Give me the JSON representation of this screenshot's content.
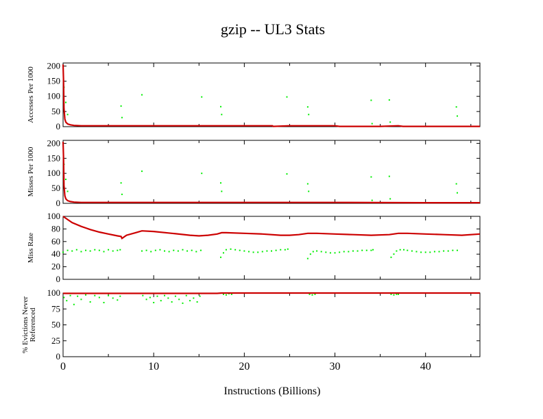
{
  "chart_data": {
    "type": "scatter",
    "title": "gzip -- UL3  Stats",
    "xlabel": "Instructions (Billions)",
    "xlim": [
      0,
      46
    ],
    "x_ticks": [
      0,
      10,
      20,
      30,
      40
    ],
    "x_tick_labels": [
      "0",
      "10",
      "20",
      "30",
      "40"
    ],
    "grid": false,
    "colors": {
      "line": "#cc0000",
      "points": "#00ee00",
      "frame": "#000000"
    },
    "panels": [
      {
        "ylabel": "Accesses Per 1000",
        "ylim": [
          0,
          210
        ],
        "y_ticks": [
          0,
          50,
          100,
          150,
          200
        ],
        "y_tick_labels": [
          "0",
          "50",
          "100",
          "150",
          "200"
        ],
        "line": {
          "x": [
            0,
            0.05,
            0.1,
            0.2,
            0.3,
            0.5,
            0.8,
            1.2,
            2,
            5,
            10,
            15,
            20,
            23.1,
            23.2,
            25,
            30,
            30.5,
            31,
            35,
            37,
            37.5,
            40,
            46
          ],
          "y": [
            205,
            150,
            60,
            25,
            15,
            9,
            6,
            4,
            3,
            3,
            3,
            3,
            3,
            3,
            1,
            3,
            3,
            1,
            1,
            1,
            3,
            1,
            1,
            1
          ]
        },
        "points": {
          "x": [
            0.1,
            0.3,
            0.5,
            6.4,
            6.5,
            8.7,
            15.3,
            17.4,
            17.5,
            24.7,
            27.0,
            27.1,
            34.0,
            34.1,
            36.0,
            36.1,
            43.4,
            43.5
          ],
          "y": [
            130,
            80,
            40,
            68,
            30,
            105,
            98,
            66,
            40,
            98,
            65,
            40,
            87,
            10,
            88,
            15,
            65,
            35
          ]
        }
      },
      {
        "ylabel": "Misses Per 1000",
        "ylim": [
          0,
          210
        ],
        "y_ticks": [
          0,
          50,
          100,
          150,
          200
        ],
        "y_tick_labels": [
          "0",
          "50",
          "100",
          "150",
          "200"
        ],
        "line": {
          "x": [
            0,
            0.05,
            0.1,
            0.2,
            0.3,
            0.5,
            0.8,
            1.2,
            2,
            5,
            10,
            20,
            30,
            40,
            46
          ],
          "y": [
            205,
            150,
            60,
            25,
            15,
            9,
            6,
            4,
            3,
            3,
            3,
            3,
            3,
            2,
            2
          ]
        },
        "points": {
          "x": [
            0.1,
            0.3,
            0.5,
            6.4,
            6.5,
            8.7,
            15.3,
            17.4,
            17.5,
            24.7,
            27.0,
            27.1,
            34.0,
            34.1,
            36.0,
            36.1,
            43.4,
            43.5
          ],
          "y": [
            130,
            80,
            40,
            68,
            30,
            107,
            100,
            68,
            40,
            98,
            65,
            40,
            88,
            10,
            90,
            15,
            65,
            35
          ]
        }
      },
      {
        "ylabel": "Miss Rate",
        "ylim": [
          0,
          100
        ],
        "y_ticks": [
          0,
          20,
          40,
          60,
          80,
          100
        ],
        "y_tick_labels": [
          "0",
          "20",
          "40",
          "60",
          "80",
          "100"
        ],
        "line": {
          "x": [
            0,
            0.5,
            1,
            2,
            3,
            4,
            5,
            6,
            6.4,
            6.5,
            7,
            8,
            8.7,
            10,
            12,
            14,
            15,
            16,
            17,
            17.5,
            18,
            20,
            22,
            24,
            25,
            26,
            27,
            28,
            30,
            32,
            34,
            36,
            37,
            38,
            40,
            42,
            44,
            46
          ],
          "y": [
            100,
            95,
            90,
            84,
            79,
            75,
            72,
            69,
            68,
            65,
            70,
            74,
            77,
            76,
            73,
            70,
            69,
            70,
            72,
            74,
            74,
            73,
            72,
            70,
            70,
            71,
            73,
            73,
            72,
            71,
            70,
            71,
            73,
            73,
            72,
            71,
            70,
            72
          ]
        },
        "points": {
          "x": [
            0,
            0.5,
            1,
            1.5,
            2,
            2.5,
            3,
            3.5,
            4,
            4.5,
            5,
            5.5,
            6,
            6.3,
            8.7,
            9.2,
            9.7,
            10.2,
            10.7,
            11.2,
            11.7,
            12.2,
            12.7,
            13.2,
            13.7,
            14.2,
            14.7,
            15.2,
            17.4,
            17.7,
            18,
            18.5,
            19,
            19.5,
            20,
            20.5,
            21,
            21.5,
            22,
            22.5,
            23,
            23.5,
            24,
            24.5,
            24.8,
            27,
            27.3,
            27.6,
            28,
            28.5,
            29,
            29.5,
            30,
            30.5,
            31,
            31.5,
            32,
            32.5,
            33,
            33.5,
            34,
            34.2,
            36.2,
            36.5,
            36.8,
            37.2,
            37.6,
            38,
            38.5,
            39,
            39.5,
            40,
            40.5,
            41,
            41.5,
            42,
            42.5,
            43,
            43.5
          ],
          "y": [
            43,
            46,
            45,
            47,
            44,
            46,
            45,
            47,
            46,
            44,
            47,
            45,
            46,
            47,
            45,
            46,
            44,
            46,
            47,
            45,
            44,
            46,
            45,
            47,
            45,
            46,
            44,
            46,
            35,
            42,
            47,
            48,
            47,
            46,
            45,
            44,
            43,
            43,
            44,
            45,
            45,
            46,
            47,
            47,
            48,
            33,
            40,
            44,
            45,
            44,
            43,
            42,
            42,
            43,
            44,
            44,
            45,
            45,
            46,
            46,
            46,
            47,
            35,
            40,
            45,
            47,
            47,
            46,
            45,
            44,
            43,
            43,
            43,
            44,
            44,
            45,
            45,
            46,
            46
          ]
        }
      },
      {
        "ylabel": [
          "% Evictions Never",
          "Referenced"
        ],
        "ylim": [
          0,
          100
        ],
        "y_ticks": [
          0,
          25,
          50,
          75,
          100
        ],
        "y_tick_labels": [
          "0",
          "25",
          "50",
          "75",
          "100"
        ],
        "line": {
          "x": [
            0,
            17,
            17.5,
            46
          ],
          "y": [
            99.5,
            99.5,
            100,
            100
          ]
        },
        "points": {
          "x": [
            0.1,
            0.4,
            0.8,
            1.2,
            1.6,
            2,
            2.5,
            3,
            3.5,
            4,
            4.5,
            5,
            5.5,
            6,
            6.3,
            8.8,
            9.2,
            9.6,
            10,
            10.4,
            10.8,
            11.2,
            11.6,
            12,
            12.4,
            12.8,
            13.2,
            13.6,
            14,
            14.4,
            14.8,
            15.1,
            17.7,
            18,
            18.3,
            18.6,
            27.2,
            27.5,
            27.8,
            36.2,
            36.5,
            36.8,
            37
          ],
          "y": [
            93,
            88,
            96,
            82,
            95,
            90,
            97,
            86,
            96,
            93,
            85,
            96,
            92,
            89,
            95,
            96,
            90,
            93,
            85,
            95,
            88,
            96,
            92,
            86,
            95,
            90,
            84,
            96,
            88,
            92,
            86,
            95,
            98,
            97,
            99,
            98,
            98,
            97,
            98,
            98,
            97,
            98,
            98
          ]
        }
      }
    ]
  }
}
